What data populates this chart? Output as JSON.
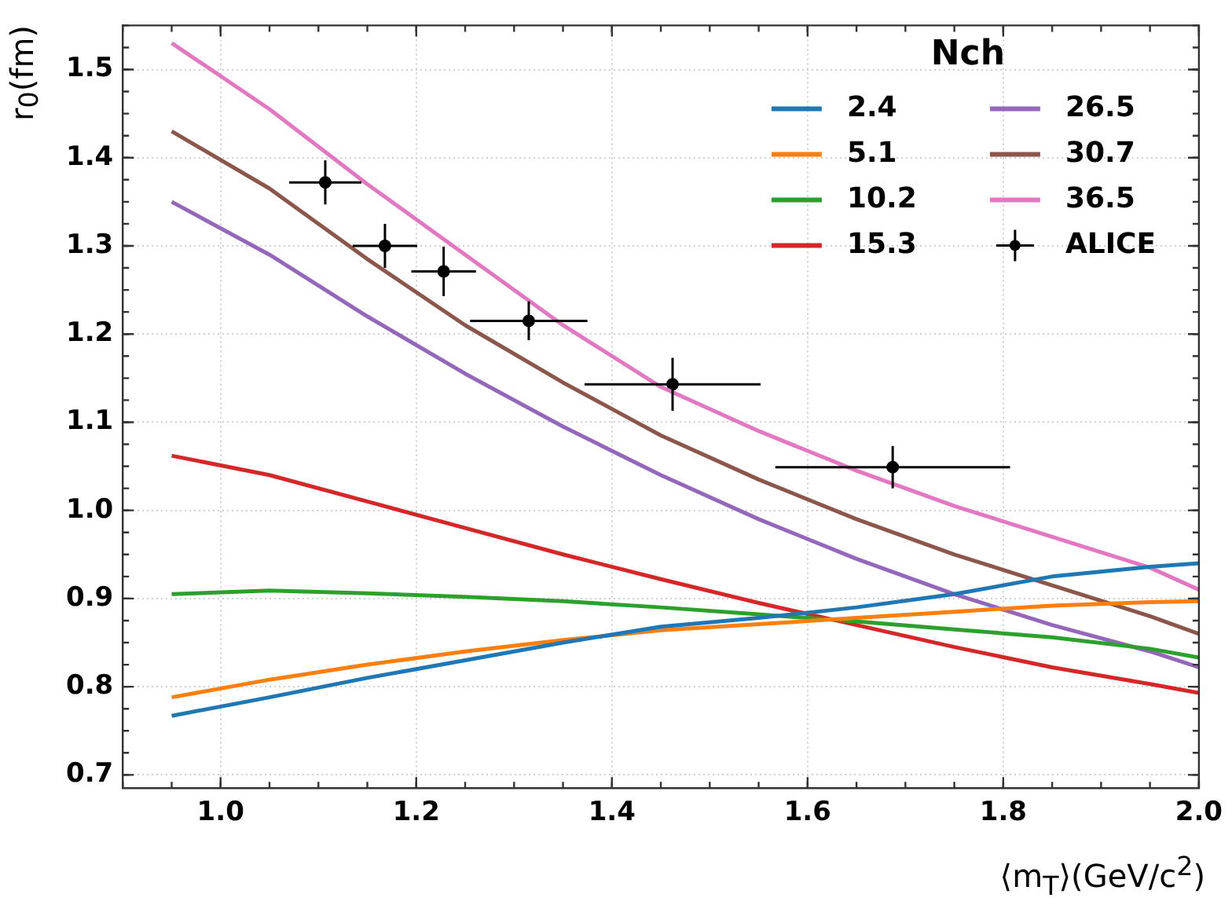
{
  "chart_data": {
    "type": "line",
    "xlabel": "⟨m$_{T}$⟩(GeV/c$^{2}$)",
    "ylabel": "r$_{0}$(fm)",
    "legend_title": "Nch",
    "legend": "top right",
    "grid": true,
    "marker": "none",
    "line_style": "solid",
    "xlim": [
      0.9,
      2.0
    ],
    "xticks": [
      {
        "value": 1,
        "label": "1.0"
      },
      1.2,
      1.4,
      1.6,
      1.8,
      {
        "value": 2,
        "label": "2.0"
      }
    ],
    "ylim": [
      0.685,
      1.55
    ],
    "yticks": [
      0.7,
      0.8,
      0.9,
      {
        "value": 1,
        "label": "1.0"
      },
      1.1,
      1.2,
      1.3,
      1.4,
      1.5
    ],
    "x": [
      0.95,
      1.05,
      1.15,
      1.25,
      1.35,
      1.45,
      1.55,
      1.65,
      1.75,
      1.85,
      1.95,
      2.0
    ],
    "series": [
      {
        "name": "2.4",
        "color": "#1f77b4",
        "values": [
          0.767,
          0.788,
          0.81,
          0.83,
          0.85,
          0.868,
          0.878,
          0.89,
          0.905,
          0.925,
          0.936,
          0.94
        ]
      },
      {
        "name": "5.1",
        "color": "#ff7f0e",
        "values": [
          0.788,
          0.808,
          0.825,
          0.84,
          0.853,
          0.864,
          0.871,
          0.878,
          0.885,
          0.892,
          0.896,
          0.897
        ]
      },
      {
        "name": "10.2",
        "color": "#2ca02c",
        "values": [
          0.905,
          0.909,
          0.906,
          0.902,
          0.897,
          0.89,
          0.882,
          0.874,
          0.865,
          0.856,
          0.843,
          0.833
        ]
      },
      {
        "name": "15.3",
        "color": "#d62728",
        "values": [
          1.062,
          1.04,
          1.01,
          0.98,
          0.95,
          0.922,
          0.895,
          0.87,
          0.845,
          0.822,
          0.803,
          0.793
        ]
      },
      {
        "name": "26.5",
        "color": "#9467bd",
        "values": [
          1.35,
          1.29,
          1.22,
          1.155,
          1.095,
          1.04,
          0.99,
          0.945,
          0.905,
          0.87,
          0.84,
          0.822
        ]
      },
      {
        "name": "30.7",
        "color": "#8c564b",
        "values": [
          1.43,
          1.365,
          1.285,
          1.21,
          1.145,
          1.085,
          1.035,
          0.99,
          0.95,
          0.915,
          0.88,
          0.86
        ]
      },
      {
        "name": "36.5",
        "color": "#e377c2",
        "values": [
          1.53,
          1.455,
          1.37,
          1.29,
          1.21,
          1.14,
          1.09,
          1.045,
          1.005,
          0.97,
          0.935,
          0.91
        ]
      },
      {
        "name": "ALICE",
        "type": "scatter",
        "marker": "circle",
        "color": "#000000",
        "x": [
          1.107,
          1.168,
          1.228,
          1.315,
          1.462,
          1.687
        ],
        "values": [
          1.372,
          1.3,
          1.271,
          1.215,
          1.143,
          1.049
        ],
        "errors": [
          0.025,
          0.025,
          0.028,
          0.022,
          0.03,
          0.024
        ],
        "xerrors": [
          0.037,
          0.033,
          0.033,
          0.06,
          0.09,
          0.12
        ]
      }
    ]
  }
}
